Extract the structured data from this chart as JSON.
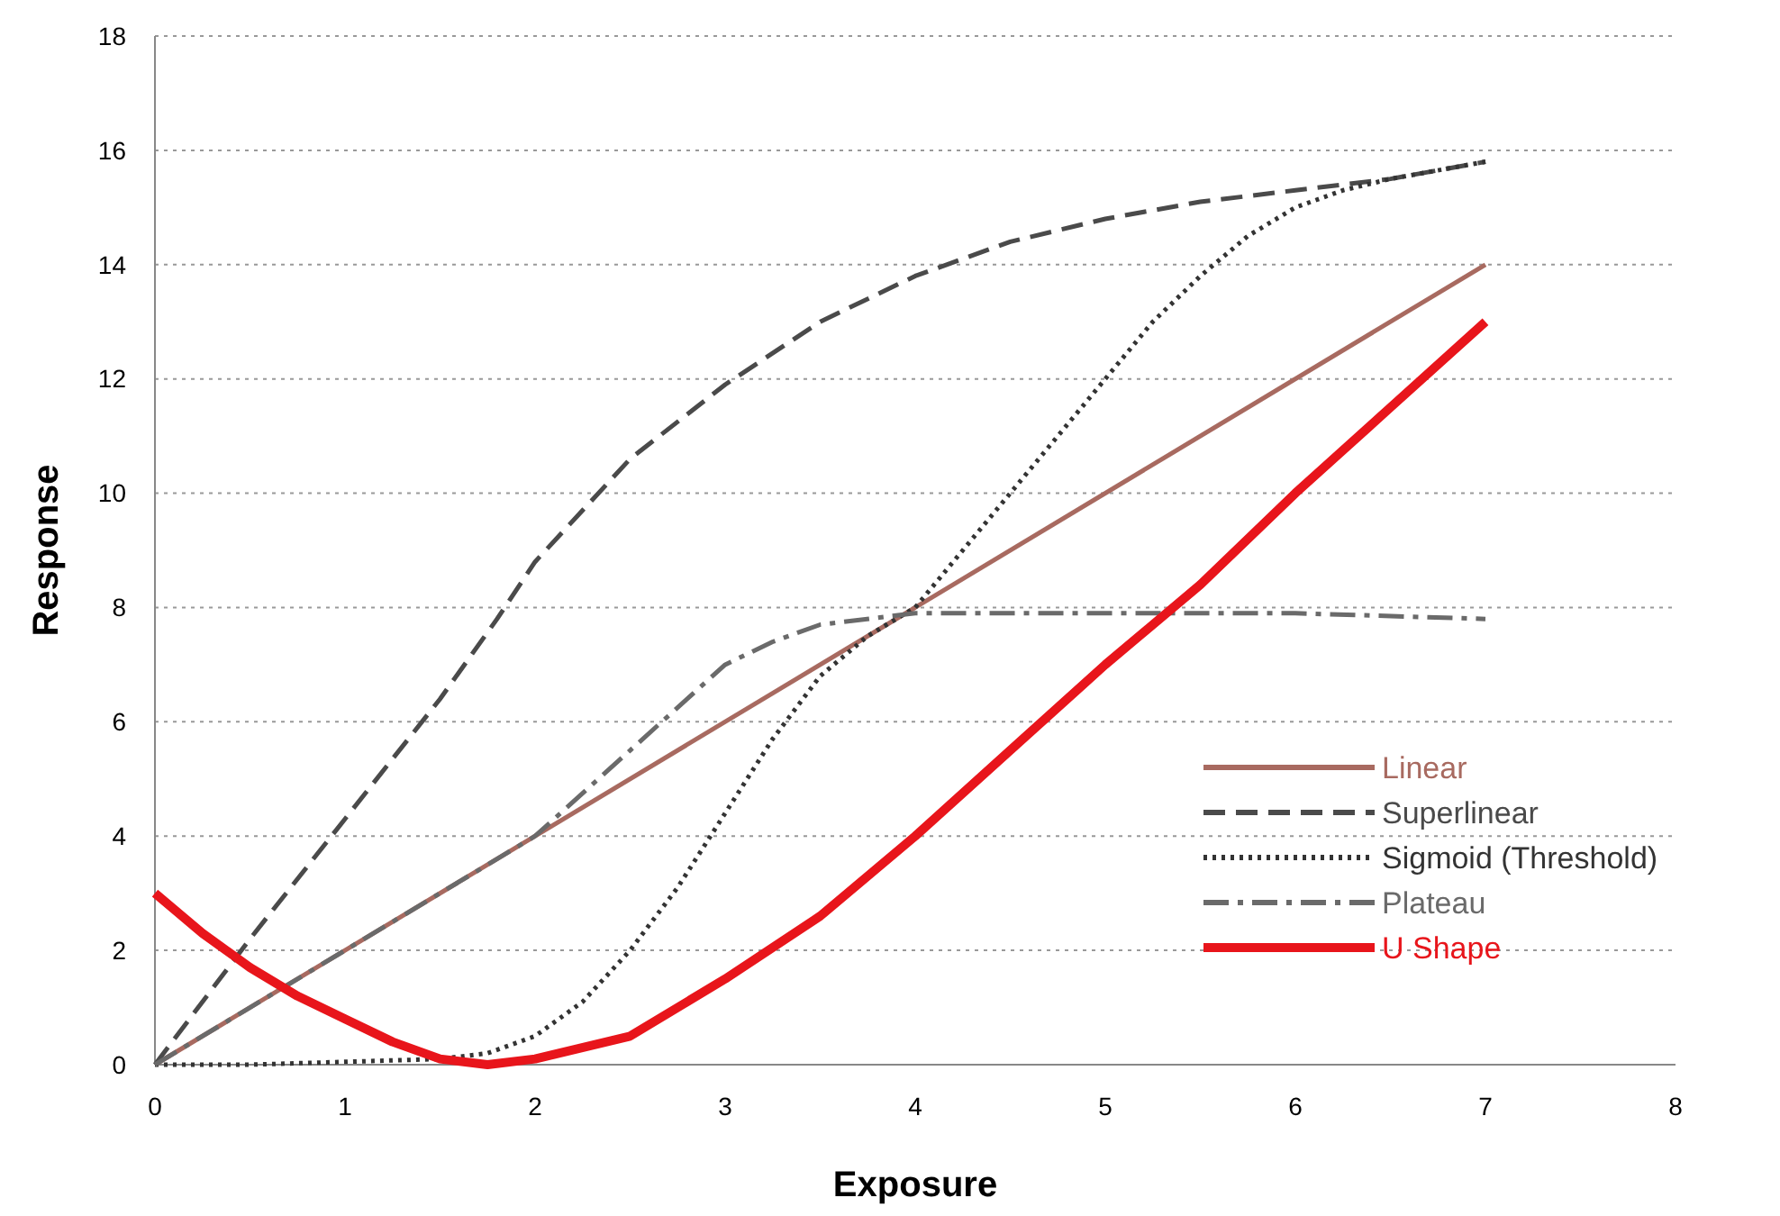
{
  "chart_data": {
    "type": "line",
    "xlabel": "Exposure",
    "ylabel": "Response",
    "xlim": [
      0,
      8
    ],
    "ylim": [
      0,
      18
    ],
    "xticks": [
      0,
      1,
      2,
      3,
      4,
      5,
      6,
      7,
      8
    ],
    "yticks": [
      0,
      2,
      4,
      6,
      8,
      10,
      12,
      14,
      16,
      18
    ],
    "grid": "y",
    "legend": "bottom right",
    "marker": "none",
    "series": [
      {
        "name": "Linear",
        "color": "#a86a60",
        "line_style": "solid",
        "x": [
          0,
          7
        ],
        "values": [
          0,
          14
        ]
      },
      {
        "name": "Superlinear",
        "color": "#4a4a4a",
        "line_style": "dashed",
        "x": [
          0,
          0.5,
          1,
          1.5,
          1.8,
          2,
          2.5,
          3,
          3.5,
          4,
          4.5,
          5,
          5.5,
          6,
          6.5,
          7
        ],
        "values": [
          0,
          2.2,
          4.3,
          6.4,
          7.8,
          8.8,
          10.6,
          11.9,
          13,
          13.8,
          14.4,
          14.8,
          15.1,
          15.3,
          15.5,
          15.8
        ]
      },
      {
        "name": "Sigmoid (Threshold)",
        "color": "#333333",
        "line_style": "dotted",
        "x": [
          0,
          0.5,
          1,
          1.5,
          1.75,
          2,
          2.25,
          2.5,
          2.75,
          3,
          3.25,
          3.5,
          3.75,
          4,
          4.25,
          4.5,
          4.75,
          5,
          5.25,
          5.5,
          5.75,
          6,
          6.25,
          6.5,
          7
        ],
        "values": [
          0,
          0,
          0.05,
          0.1,
          0.2,
          0.5,
          1.1,
          2,
          3.1,
          4.4,
          5.7,
          6.8,
          7.5,
          8,
          9,
          10,
          11,
          12,
          13,
          13.8,
          14.5,
          15,
          15.3,
          15.5,
          15.8
        ]
      },
      {
        "name": "Plateau",
        "color": "#6a6a6a",
        "line_style": "dashdot",
        "x": [
          0,
          0.5,
          1,
          1.5,
          2,
          2.5,
          3,
          3.25,
          3.5,
          4,
          4.5,
          5,
          6,
          7
        ],
        "values": [
          0,
          1,
          2,
          3,
          4,
          5.5,
          7,
          7.4,
          7.7,
          7.9,
          7.9,
          7.9,
          7.9,
          7.8
        ]
      },
      {
        "name": "U Shape",
        "color": "#e8151b",
        "line_style": "solid",
        "x": [
          0,
          0.25,
          0.5,
          0.75,
          1,
          1.25,
          1.5,
          1.75,
          2,
          2.5,
          3,
          3.5,
          4,
          4.5,
          5,
          5.5,
          6,
          6.5,
          7
        ],
        "values": [
          3,
          2.3,
          1.7,
          1.2,
          0.8,
          0.4,
          0.1,
          0,
          0.1,
          0.5,
          1.5,
          2.6,
          4,
          5.5,
          7,
          8.4,
          10,
          11.5,
          13
        ]
      }
    ]
  }
}
